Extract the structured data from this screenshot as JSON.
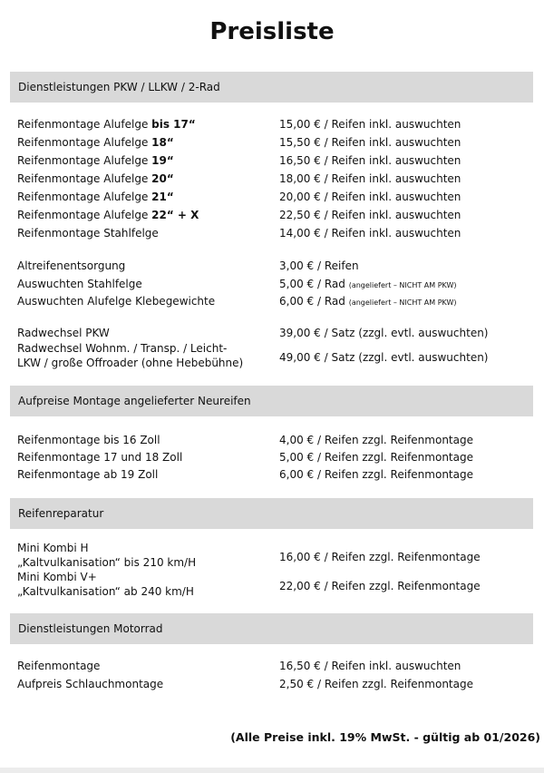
{
  "title": "Preisliste",
  "sections": [
    {
      "header": "Dienstleistungen PKW / LLKW / 2-Rad",
      "items": [
        {
          "label": "Reifenmontage Alufelge ",
          "bold": "bis 17“",
          "price": "15,00 € / Reifen inkl. auswuchten"
        },
        {
          "label": "Reifenmontage Alufelge ",
          "bold": "18“",
          "price": "15,50 € / Reifen inkl. auswuchten"
        },
        {
          "label": "Reifenmontage Alufelge ",
          "bold": "19“",
          "price": "16,50 € / Reifen inkl. auswuchten"
        },
        {
          "label": "Reifenmontage Alufelge ",
          "bold": "20“",
          "price": "18,00 € / Reifen inkl. auswuchten"
        },
        {
          "label": "Reifenmontage Alufelge ",
          "bold": "21“",
          "price": "20,00 € / Reifen inkl. auswuchten"
        },
        {
          "label": "Reifenmontage Alufelge ",
          "bold": "22“ + X",
          "price": "22,50 € / Reifen inkl. auswuchten"
        },
        {
          "label": "Reifenmontage Stahlfelge",
          "price": "14,00 € / Reifen inkl. auswuchten"
        },
        {
          "label": "Altreifenentsorgung",
          "price": "3,00 € / Reifen"
        },
        {
          "label": "Auswuchten Stahlfelge",
          "price": "5,00 € / Rad ",
          "note": "(angeliefert – NICHT AM PKW)"
        },
        {
          "label": "Auswuchten Alufelge Klebegewichte",
          "price": "6,00 € / Rad ",
          "note": "(angeliefert – NICHT AM PKW)"
        },
        {
          "label": "Radwechsel PKW",
          "price": "39,00 € / Satz (zzgl. evtl. auswuchten)"
        },
        {
          "label": "Radwechsel Wohnm. / Transp. / Leicht-",
          "label2": "LKW / große Offroader (ohne Hebebühne)",
          "price": "49,00 € / Satz (zzgl. evtl. auswuchten)"
        }
      ]
    },
    {
      "header": "Aufpreise Montage angelieferter Neureifen",
      "items": [
        {
          "label": "Reifenmontage bis 16 Zoll",
          "price": "4,00 € / Reifen zzgl. Reifenmontage"
        },
        {
          "label": "Reifenmontage 17 und 18 Zoll",
          "price": "5,00 € / Reifen zzgl. Reifenmontage"
        },
        {
          "label": "Reifenmontage ab 19 Zoll",
          "price": "6,00 € / Reifen zzgl. Reifenmontage"
        }
      ]
    },
    {
      "header": "Reifenreparatur",
      "items": [
        {
          "label": "Mini Kombi H",
          "label2": "„Kaltvulkanisation“ bis 210 km/H",
          "price": "16,00 € / Reifen zzgl. Reifenmontage"
        },
        {
          "label": "Mini Kombi V+",
          "label2": "„Kaltvulkanisation“ ab 240 km/H",
          "price": "22,00 € / Reifen zzgl. Reifenmontage"
        }
      ]
    },
    {
      "header": "Dienstleistungen Motorrad",
      "items": [
        {
          "label": "Reifenmontage",
          "price": "16,50 € / Reifen inkl. auswuchten"
        },
        {
          "label": "Aufpreis Schlauchmontage",
          "price": "2,50 € / Reifen zzgl. Reifenmontage"
        }
      ]
    }
  ],
  "footer": "(Alle Preise inkl. 19% MwSt. - gültig ab 01/2026)",
  "colors": {
    "header_bar": "#d9d9d9",
    "text": "#111111"
  }
}
